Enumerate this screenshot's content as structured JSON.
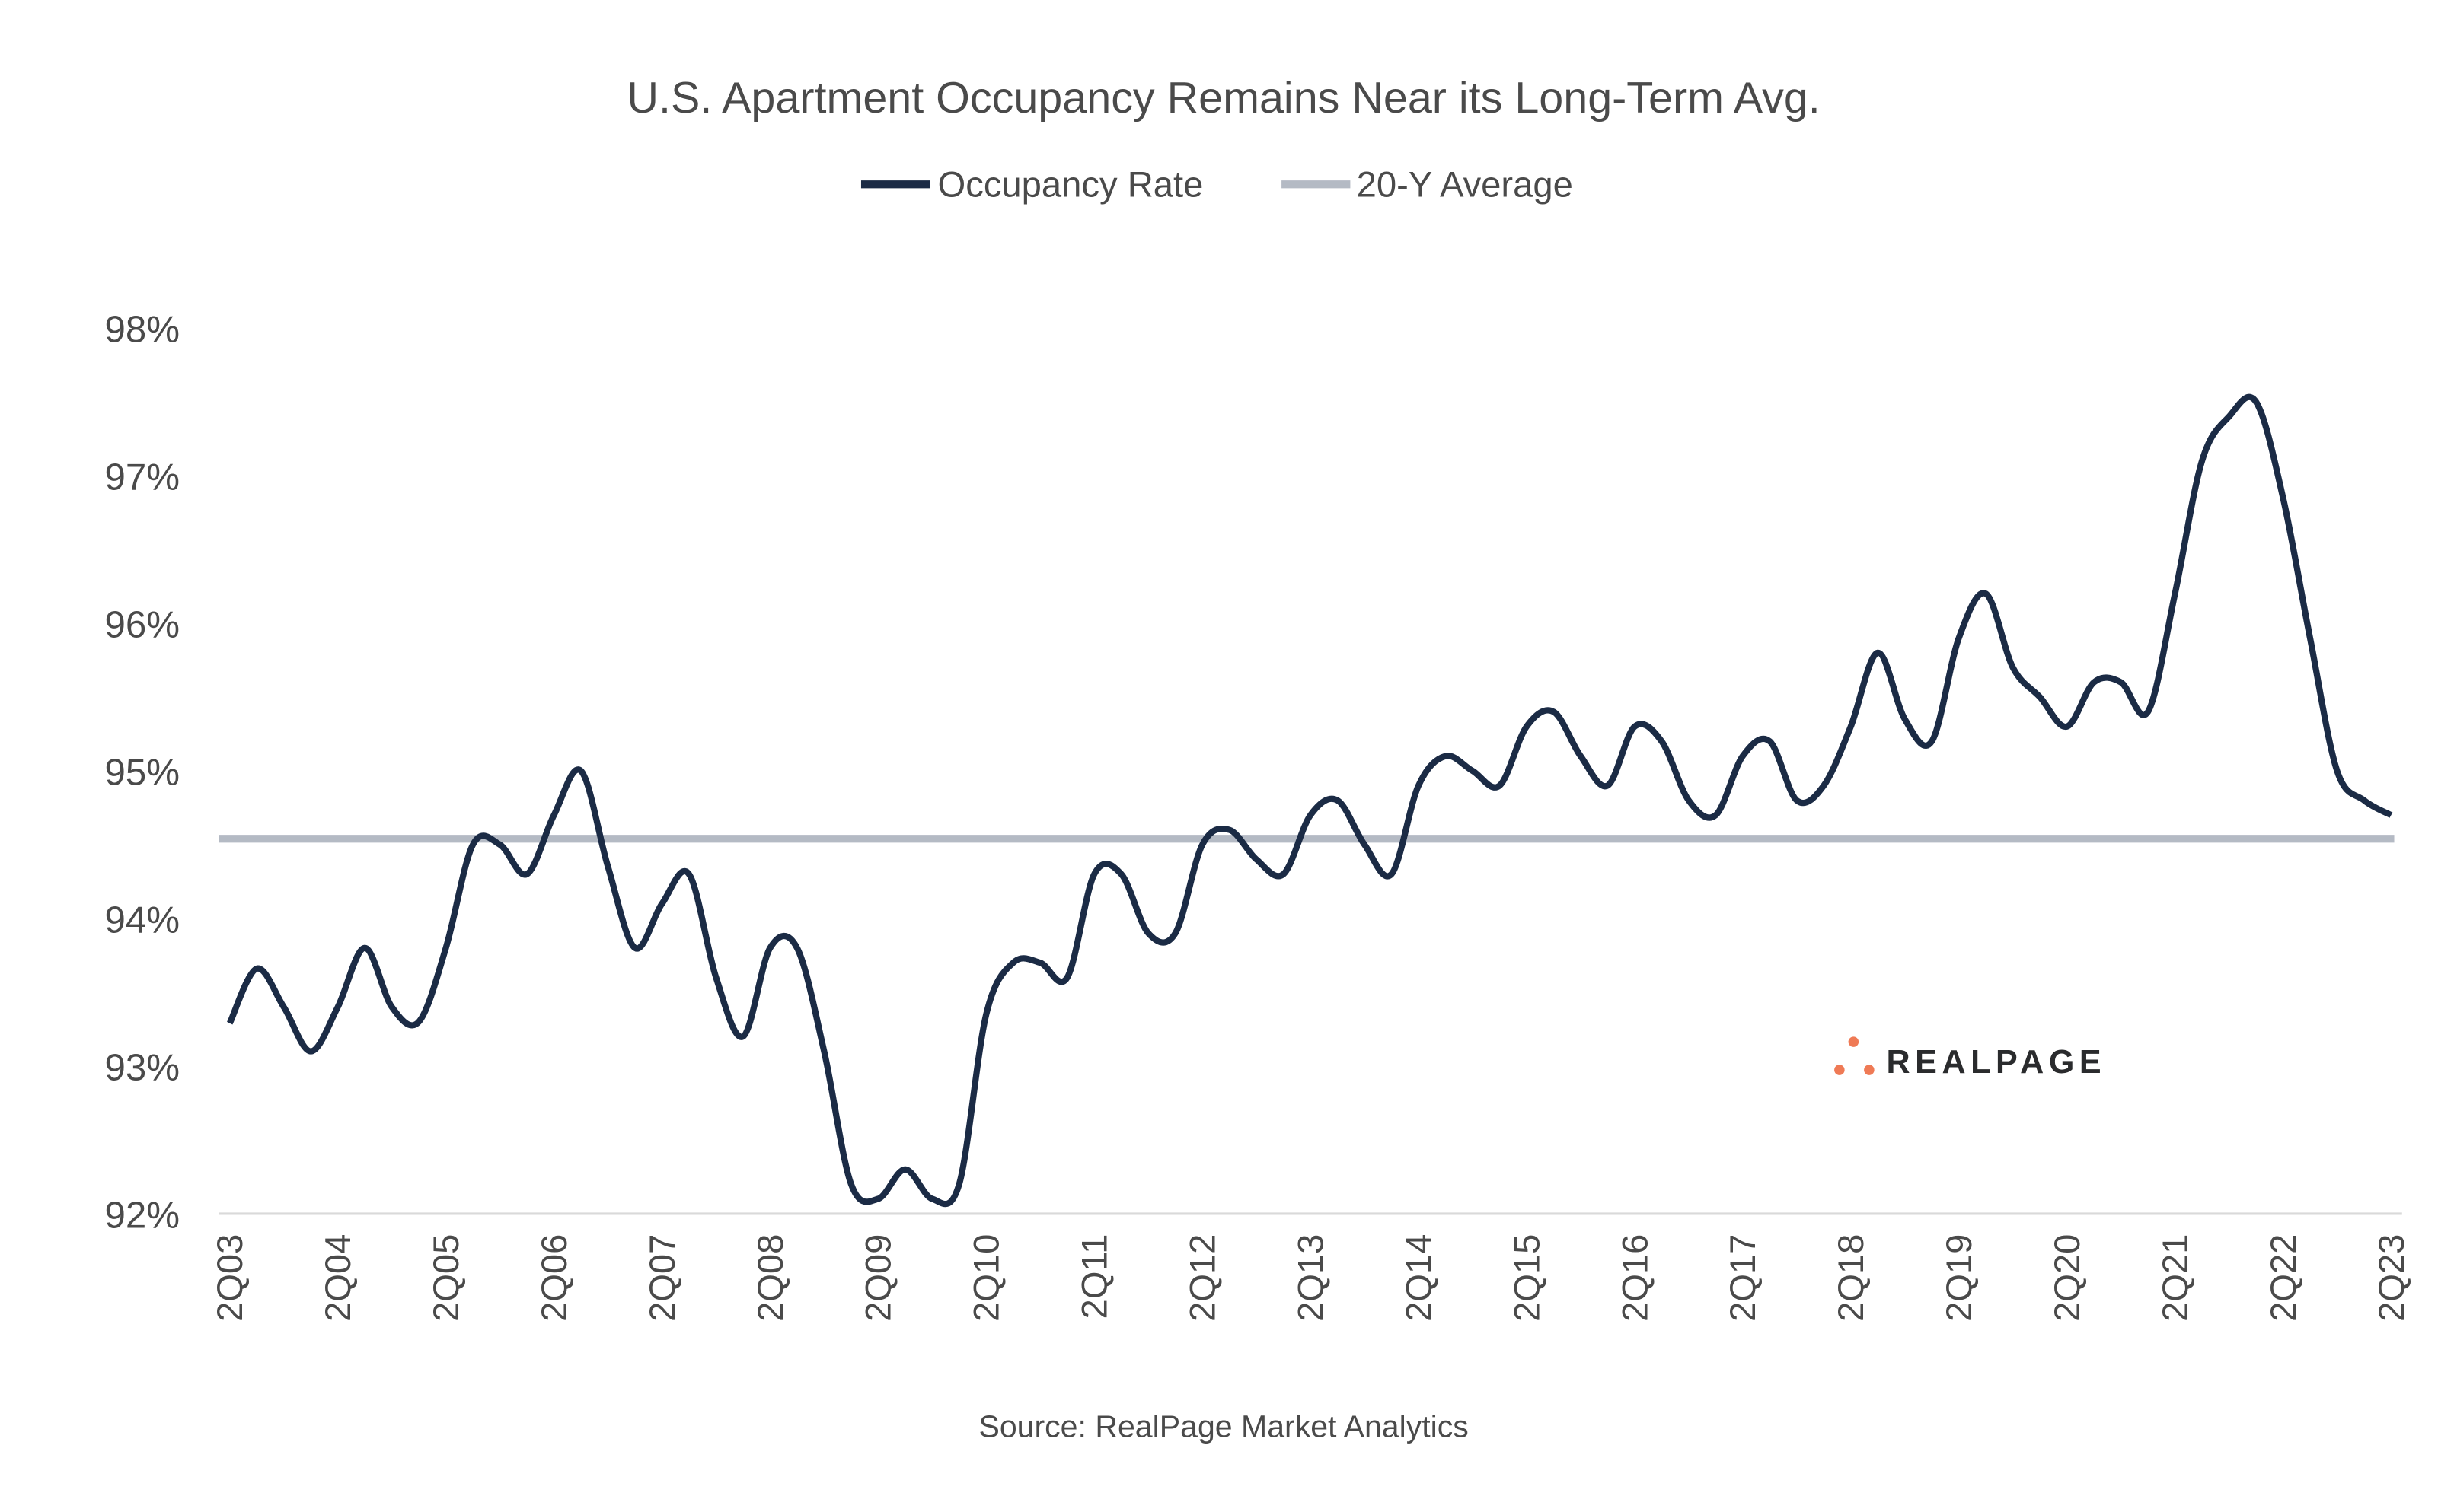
{
  "chart_data": {
    "type": "line",
    "title": "U.S. Apartment Occupancy Remains Near its Long-Term Avg.",
    "source": "Source: RealPage Market Analytics",
    "logo_text": "REALPAGE",
    "ylim": [
      92,
      98
    ],
    "yticks": [
      "92%",
      "93%",
      "94%",
      "95%",
      "96%",
      "97%",
      "98%"
    ],
    "ytick_values": [
      92,
      93,
      94,
      95,
      96,
      97,
      98
    ],
    "xtick_labels": [
      "2Q03",
      "2Q04",
      "2Q05",
      "2Q06",
      "2Q07",
      "2Q08",
      "2Q09",
      "2Q10",
      "2Q11",
      "2Q12",
      "2Q13",
      "2Q14",
      "2Q15",
      "2Q16",
      "2Q17",
      "2Q18",
      "2Q19",
      "2Q20",
      "2Q21",
      "2Q22",
      "2Q23"
    ],
    "grid": false,
    "legend_position": "top-center",
    "series": [
      {
        "name": "Occupancy Rate",
        "color": "#1b2b45",
        "values": [
          93.29,
          93.66,
          93.4,
          93.1,
          93.4,
          93.8,
          93.4,
          93.3,
          93.8,
          94.5,
          94.5,
          94.3,
          94.7,
          95.0,
          94.35,
          93.8,
          94.1,
          94.3,
          93.6,
          93.2,
          93.8,
          93.8,
          93.1,
          92.2,
          92.1,
          92.3,
          92.1,
          92.2,
          93.35,
          93.7,
          93.7,
          93.6,
          94.3,
          94.3,
          93.9,
          93.9,
          94.5,
          94.6,
          94.4,
          94.3,
          94.7,
          94.8,
          94.5,
          94.3,
          94.9,
          95.1,
          95.0,
          94.9,
          95.3,
          95.4,
          95.1,
          94.9,
          95.3,
          95.2,
          94.8,
          94.7,
          95.1,
          95.2,
          94.8,
          94.9,
          95.3,
          95.8,
          95.35,
          95.2,
          95.9,
          96.2,
          95.7,
          95.5,
          95.3,
          95.6,
          95.6,
          95.4,
          96.2,
          97.1,
          97.4,
          97.5,
          96.85,
          95.9,
          95.0,
          94.8,
          94.7
        ]
      },
      {
        "name": "20-Y Average",
        "color": "#b4bac4",
        "value": 94.54
      }
    ]
  }
}
